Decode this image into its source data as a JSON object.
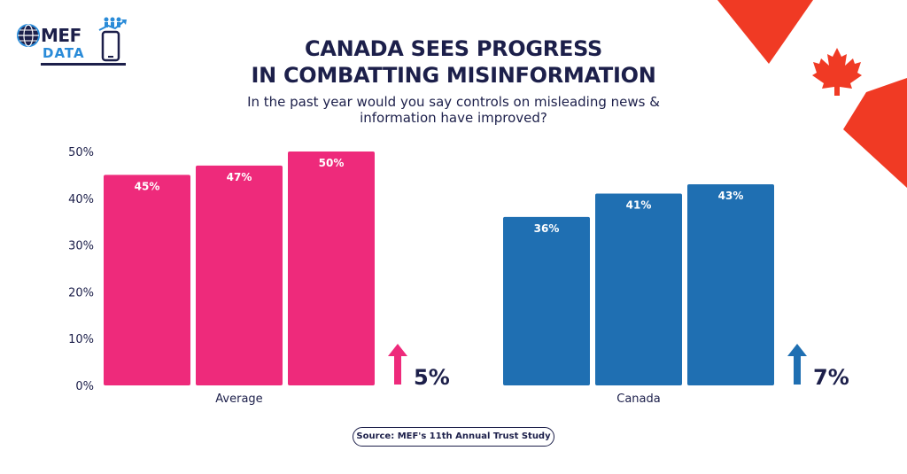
{
  "logo": {
    "line1": "MEF",
    "line2": "DATA"
  },
  "title_line1": "CANADA SEES PROGRESS",
  "title_line2": "IN COMBATTING MISINFORMATION",
  "subtitle_line1": "In the past year would you say controls on misleading news &",
  "subtitle_line2": "information have improved?",
  "source": "Source: MEF's 11th Annual Trust Study",
  "colors": {
    "average": "#ee2a7b",
    "canada": "#1f6fb2",
    "title": "#1c1f4a",
    "flag_red": "#f03a24"
  },
  "chart_data": {
    "type": "bar",
    "title": "",
    "xlabel": "",
    "ylabel": "",
    "ylim": [
      0,
      50
    ],
    "yticks": [
      "0%",
      "10%",
      "20%",
      "30%",
      "40%",
      "50%"
    ],
    "grid": false,
    "groups": [
      {
        "name": "Average",
        "values": [
          45,
          47,
          50
        ],
        "labels": [
          "45%",
          "47%",
          "50%"
        ],
        "color": "#ee2a7b",
        "change": "5%"
      },
      {
        "name": "Canada",
        "values": [
          36,
          41,
          43
        ],
        "labels": [
          "36%",
          "41%",
          "43%"
        ],
        "color": "#1f6fb2",
        "change": "7%"
      }
    ]
  }
}
